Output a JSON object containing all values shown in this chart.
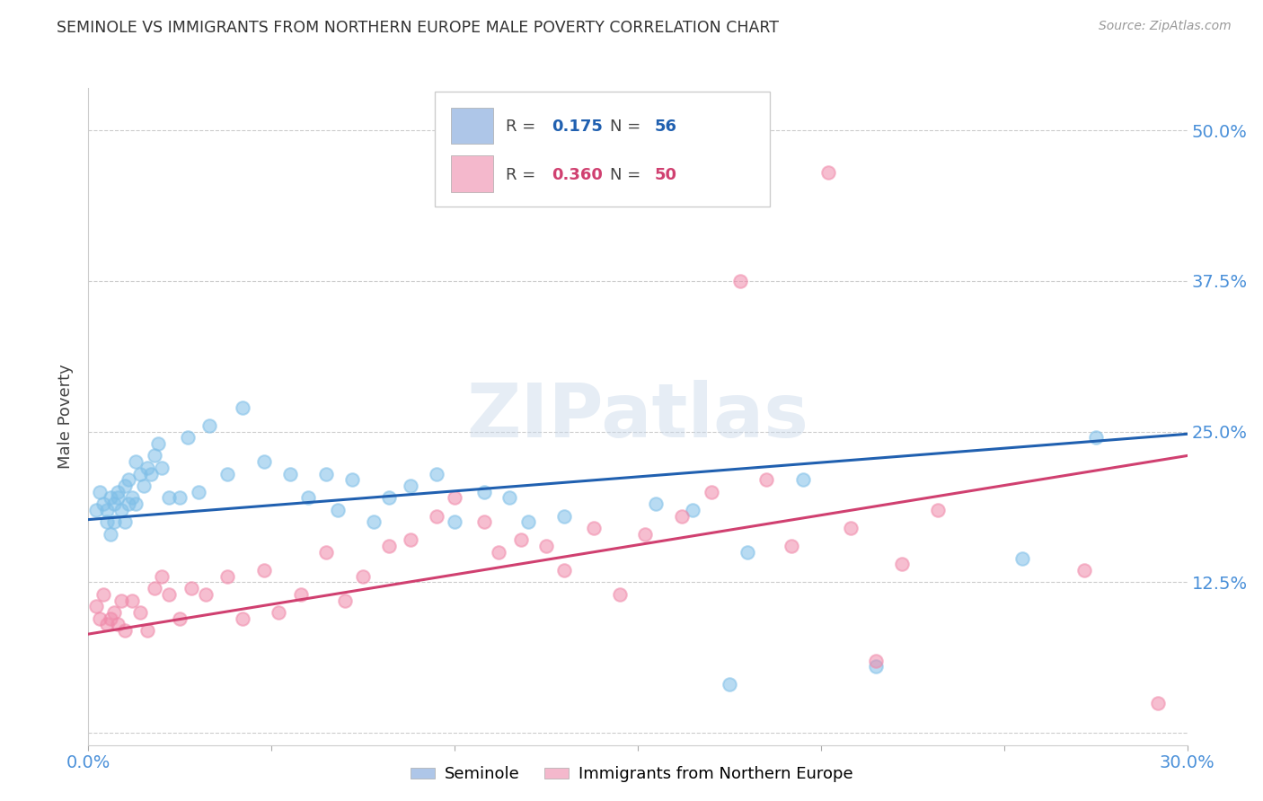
{
  "title": "SEMINOLE VS IMMIGRANTS FROM NORTHERN EUROPE MALE POVERTY CORRELATION CHART",
  "source": "Source: ZipAtlas.com",
  "ylabel": "Male Poverty",
  "xlim": [
    0.0,
    0.3
  ],
  "ylim": [
    -0.01,
    0.535
  ],
  "yticks": [
    0.0,
    0.125,
    0.25,
    0.375,
    0.5
  ],
  "ytick_labels": [
    "",
    "12.5%",
    "25.0%",
    "37.5%",
    "50.0%"
  ],
  "xticks": [
    0.0,
    0.05,
    0.1,
    0.15,
    0.2,
    0.25,
    0.3
  ],
  "xtick_labels": [
    "0.0%",
    "",
    "",
    "",
    "",
    "",
    "30.0%"
  ],
  "watermark": "ZIPatlas",
  "series1_label": "Seminole",
  "series2_label": "Immigrants from Northern Europe",
  "series1_color": "#7fbfe8",
  "series2_color": "#f08aaa",
  "series1_line_color": "#2060b0",
  "series2_line_color": "#d04070",
  "axis_tick_color": "#4a90d9",
  "series1_x": [
    0.002,
    0.003,
    0.004,
    0.005,
    0.005,
    0.006,
    0.006,
    0.007,
    0.007,
    0.008,
    0.008,
    0.009,
    0.01,
    0.01,
    0.011,
    0.011,
    0.012,
    0.013,
    0.013,
    0.014,
    0.015,
    0.016,
    0.017,
    0.018,
    0.019,
    0.02,
    0.022,
    0.025,
    0.027,
    0.03,
    0.033,
    0.038,
    0.042,
    0.048,
    0.055,
    0.06,
    0.065,
    0.068,
    0.072,
    0.078,
    0.082,
    0.088,
    0.095,
    0.1,
    0.108,
    0.115,
    0.12,
    0.13,
    0.155,
    0.165,
    0.175,
    0.18,
    0.195,
    0.215,
    0.255,
    0.275
  ],
  "series1_y": [
    0.185,
    0.2,
    0.19,
    0.185,
    0.175,
    0.195,
    0.165,
    0.19,
    0.175,
    0.2,
    0.195,
    0.185,
    0.205,
    0.175,
    0.19,
    0.21,
    0.195,
    0.225,
    0.19,
    0.215,
    0.205,
    0.22,
    0.215,
    0.23,
    0.24,
    0.22,
    0.195,
    0.195,
    0.245,
    0.2,
    0.255,
    0.215,
    0.27,
    0.225,
    0.215,
    0.195,
    0.215,
    0.185,
    0.21,
    0.175,
    0.195,
    0.205,
    0.215,
    0.175,
    0.2,
    0.195,
    0.175,
    0.18,
    0.19,
    0.185,
    0.04,
    0.15,
    0.21,
    0.055,
    0.145,
    0.245
  ],
  "series2_x": [
    0.002,
    0.003,
    0.004,
    0.005,
    0.006,
    0.007,
    0.008,
    0.009,
    0.01,
    0.012,
    0.014,
    0.016,
    0.018,
    0.02,
    0.022,
    0.025,
    0.028,
    0.032,
    0.038,
    0.042,
    0.048,
    0.052,
    0.058,
    0.065,
    0.07,
    0.075,
    0.082,
    0.088,
    0.095,
    0.1,
    0.108,
    0.112,
    0.118,
    0.125,
    0.13,
    0.138,
    0.145,
    0.152,
    0.162,
    0.17,
    0.178,
    0.185,
    0.192,
    0.202,
    0.208,
    0.215,
    0.222,
    0.232,
    0.272,
    0.292
  ],
  "series2_y": [
    0.105,
    0.095,
    0.115,
    0.09,
    0.095,
    0.1,
    0.09,
    0.11,
    0.085,
    0.11,
    0.1,
    0.085,
    0.12,
    0.13,
    0.115,
    0.095,
    0.12,
    0.115,
    0.13,
    0.095,
    0.135,
    0.1,
    0.115,
    0.15,
    0.11,
    0.13,
    0.155,
    0.16,
    0.18,
    0.195,
    0.175,
    0.15,
    0.16,
    0.155,
    0.135,
    0.17,
    0.115,
    0.165,
    0.18,
    0.2,
    0.375,
    0.21,
    0.155,
    0.465,
    0.17,
    0.06,
    0.14,
    0.185,
    0.135,
    0.025
  ],
  "trendline1_x": [
    0.0,
    0.3
  ],
  "trendline1_y": [
    0.177,
    0.248
  ],
  "trendline2_x": [
    0.0,
    0.3
  ],
  "trendline2_y": [
    0.082,
    0.23
  ],
  "legend_box_color": "#aec6e8",
  "legend_box_color2": "#f4b8cc",
  "background_color": "#ffffff",
  "grid_color": "#cccccc",
  "title_color": "#333333"
}
